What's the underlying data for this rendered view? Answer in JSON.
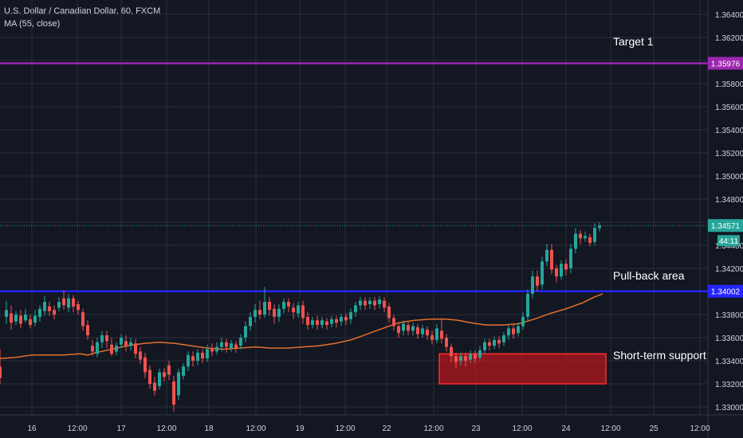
{
  "header": {
    "symbol_line": "U.S. Dollar / Canadian Dollar, 60, FXCM",
    "indicator_line": "MA (55, close)"
  },
  "chart_data": {
    "type": "candlestick",
    "y_ticks": [
      "1.33000",
      "1.33200",
      "1.33400",
      "1.33600",
      "1.33800",
      "1.34000",
      "1.34200",
      "1.34400",
      "1.34600",
      "1.34800",
      "1.35000",
      "1.35200",
      "1.35400",
      "1.35600",
      "1.35800",
      "1.36000",
      "1.36200",
      "1.36400"
    ],
    "ylim": [
      1.3295,
      1.3641
    ],
    "x_labels": [
      "16",
      "12:00",
      "17",
      "12:00",
      "18",
      "12:00",
      "19",
      "12:00",
      "22",
      "12:00",
      "23",
      "12:00",
      "24",
      "12:00",
      "25",
      "12:00"
    ],
    "last_price": "1.34571",
    "last_price_value": 1.34571,
    "countdown": "44:11",
    "levels": [
      {
        "name": "Target 1",
        "value": 1.35976,
        "label": "1.35976",
        "color": "#9c27b0",
        "annotation": "Target 1"
      },
      {
        "name": "Pull-back area",
        "value": 1.34002,
        "label": "1.34002",
        "color": "#2424ff",
        "annotation": "Pull-back area"
      }
    ],
    "zone": {
      "name": "Short-term support",
      "top": 1.3346,
      "bottom": 1.332,
      "annotation": "Short-term support"
    },
    "ma": {
      "name": "MA (55, close)",
      "color": "#e4702c",
      "points": [
        [
          0,
          1.3342
        ],
        [
          20,
          1.3343
        ],
        [
          40,
          1.3345
        ],
        [
          60,
          1.3345
        ],
        [
          80,
          1.3345
        ],
        [
          100,
          1.3346
        ],
        [
          110,
          1.3345
        ],
        [
          120,
          1.3347
        ],
        [
          140,
          1.335
        ],
        [
          160,
          1.3353
        ],
        [
          180,
          1.3355
        ],
        [
          200,
          1.3356
        ],
        [
          220,
          1.3355
        ],
        [
          240,
          1.3353
        ],
        [
          260,
          1.3351
        ],
        [
          280,
          1.335
        ],
        [
          300,
          1.3351
        ],
        [
          320,
          1.3352
        ],
        [
          340,
          1.3351
        ],
        [
          360,
          1.3351
        ],
        [
          380,
          1.3352
        ],
        [
          400,
          1.3353
        ],
        [
          420,
          1.3355
        ],
        [
          440,
          1.3358
        ],
        [
          460,
          1.3363
        ],
        [
          480,
          1.3368
        ],
        [
          500,
          1.3373
        ],
        [
          520,
          1.3375
        ],
        [
          540,
          1.3376
        ],
        [
          560,
          1.3376
        ],
        [
          575,
          1.3375
        ],
        [
          590,
          1.3373
        ],
        [
          610,
          1.3371
        ],
        [
          630,
          1.3371
        ],
        [
          650,
          1.3372
        ],
        [
          670,
          1.3376
        ],
        [
          690,
          1.3381
        ],
        [
          710,
          1.3385
        ],
        [
          730,
          1.339
        ],
        [
          745,
          1.3395
        ],
        [
          756,
          1.3398
        ]
      ]
    },
    "candles": [
      [
        0,
        1.3335,
        1.3325,
        1.335,
        1.332
      ],
      [
        8,
        1.3378,
        1.3384,
        1.3392,
        1.3372
      ],
      [
        14,
        1.3381,
        1.3373,
        1.3388,
        1.3367
      ],
      [
        20,
        1.3374,
        1.338,
        1.3383,
        1.3371
      ],
      [
        26,
        1.3379,
        1.3372,
        1.3384,
        1.3368
      ],
      [
        32,
        1.3375,
        1.338,
        1.3385,
        1.3373
      ],
      [
        38,
        1.3376,
        1.3371,
        1.338,
        1.3368
      ],
      [
        44,
        1.3373,
        1.3379,
        1.3384,
        1.337
      ],
      [
        50,
        1.3378,
        1.3385,
        1.3388,
        1.3374
      ],
      [
        56,
        1.3383,
        1.3391,
        1.3396,
        1.3379
      ],
      [
        62,
        1.3387,
        1.3383,
        1.3391,
        1.3379
      ],
      [
        68,
        1.3384,
        1.338,
        1.3388,
        1.3376
      ],
      [
        74,
        1.3386,
        1.3391,
        1.3395,
        1.3383
      ],
      [
        80,
        1.3394,
        1.3388,
        1.3401,
        1.3384
      ],
      [
        86,
        1.3386,
        1.3394,
        1.3398,
        1.3382
      ],
      [
        92,
        1.3394,
        1.3387,
        1.3397,
        1.3382
      ],
      [
        98,
        1.3389,
        1.3384,
        1.3392,
        1.338
      ],
      [
        104,
        1.3382,
        1.337,
        1.3385,
        1.3366
      ],
      [
        110,
        1.3371,
        1.3362,
        1.3375,
        1.3358
      ],
      [
        116,
        1.3353,
        1.3348,
        1.3358,
        1.3344
      ],
      [
        122,
        1.3346,
        1.3356,
        1.336,
        1.3343
      ],
      [
        128,
        1.3356,
        1.3362,
        1.3366,
        1.3351
      ],
      [
        134,
        1.3362,
        1.3357,
        1.3366,
        1.3351
      ],
      [
        140,
        1.3354,
        1.3346,
        1.336,
        1.3344
      ],
      [
        146,
        1.3348,
        1.3353,
        1.3356,
        1.3345
      ],
      [
        152,
        1.3354,
        1.336,
        1.3363,
        1.3351
      ],
      [
        158,
        1.3357,
        1.3353,
        1.3362,
        1.3348
      ],
      [
        164,
        1.3353,
        1.3356,
        1.336,
        1.3349
      ],
      [
        170,
        1.3355,
        1.3346,
        1.3359,
        1.3342
      ],
      [
        176,
        1.3348,
        1.3341,
        1.3352,
        1.3337
      ],
      [
        182,
        1.3343,
        1.333,
        1.3347,
        1.3325
      ],
      [
        188,
        1.3332,
        1.332,
        1.3336,
        1.3316
      ],
      [
        194,
        1.3321,
        1.3314,
        1.3326,
        1.331
      ],
      [
        200,
        1.3318,
        1.333,
        1.3333,
        1.3315
      ],
      [
        206,
        1.333,
        1.3326,
        1.3334,
        1.3322
      ],
      [
        212,
        1.3336,
        1.3328,
        1.334,
        1.3323
      ],
      [
        218,
        1.3322,
        1.3302,
        1.3327,
        1.3296
      ],
      [
        224,
        1.331,
        1.333,
        1.3333,
        1.3306
      ],
      [
        230,
        1.3327,
        1.3335,
        1.3338,
        1.3324
      ],
      [
        236,
        1.3335,
        1.3345,
        1.3348,
        1.3331
      ],
      [
        242,
        1.3344,
        1.334,
        1.3348,
        1.3335
      ],
      [
        248,
        1.334,
        1.3347,
        1.335,
        1.3336
      ],
      [
        254,
        1.3347,
        1.3342,
        1.335,
        1.3338
      ],
      [
        260,
        1.3342,
        1.335,
        1.3354,
        1.3339
      ],
      [
        266,
        1.335,
        1.3348,
        1.3355,
        1.3344
      ],
      [
        272,
        1.3348,
        1.3352,
        1.3356,
        1.3345
      ],
      [
        278,
        1.3352,
        1.3356,
        1.336,
        1.3348
      ],
      [
        284,
        1.3356,
        1.3352,
        1.3359,
        1.3347
      ],
      [
        290,
        1.3351,
        1.3355,
        1.3358,
        1.3348
      ],
      [
        296,
        1.3354,
        1.3351,
        1.3357,
        1.3347
      ],
      [
        302,
        1.3353,
        1.336,
        1.3363,
        1.335
      ],
      [
        308,
        1.336,
        1.337,
        1.3374,
        1.3356
      ],
      [
        314,
        1.337,
        1.3378,
        1.3382,
        1.3366
      ],
      [
        320,
        1.3378,
        1.3384,
        1.3389,
        1.3373
      ],
      [
        326,
        1.3384,
        1.338,
        1.3392,
        1.3376
      ],
      [
        332,
        1.338,
        1.3391,
        1.3404,
        1.3377
      ],
      [
        338,
        1.3391,
        1.3384,
        1.3395,
        1.3379
      ],
      [
        344,
        1.3385,
        1.3378,
        1.3389,
        1.3372
      ],
      [
        350,
        1.3378,
        1.3385,
        1.3389,
        1.3374
      ],
      [
        356,
        1.3385,
        1.3391,
        1.3394,
        1.3381
      ],
      [
        362,
        1.3391,
        1.3387,
        1.3394,
        1.3382
      ],
      [
        368,
        1.3386,
        1.3382,
        1.339,
        1.3376
      ],
      [
        374,
        1.3381,
        1.3388,
        1.3391,
        1.3377
      ],
      [
        380,
        1.3388,
        1.3377,
        1.3392,
        1.3372
      ],
      [
        386,
        1.3378,
        1.3371,
        1.3382,
        1.3367
      ],
      [
        392,
        1.3371,
        1.3375,
        1.3378,
        1.3368
      ],
      [
        398,
        1.3375,
        1.3371,
        1.3379,
        1.3367
      ],
      [
        404,
        1.3371,
        1.3375,
        1.3378,
        1.3368
      ],
      [
        410,
        1.3374,
        1.3371,
        1.3377,
        1.3367
      ],
      [
        416,
        1.3372,
        1.3376,
        1.3379,
        1.3369
      ],
      [
        422,
        1.3376,
        1.3373,
        1.3379,
        1.3369
      ],
      [
        428,
        1.3374,
        1.3378,
        1.3381,
        1.337
      ],
      [
        434,
        1.3378,
        1.3375,
        1.3381,
        1.3371
      ],
      [
        440,
        1.3376,
        1.3382,
        1.3385,
        1.3372
      ],
      [
        446,
        1.3382,
        1.3388,
        1.3391,
        1.3378
      ],
      [
        452,
        1.3388,
        1.3392,
        1.3395,
        1.3384
      ],
      [
        458,
        1.3392,
        1.3388,
        1.3395,
        1.3384
      ],
      [
        464,
        1.3389,
        1.3392,
        1.3395,
        1.3385
      ],
      [
        470,
        1.3392,
        1.3388,
        1.3395,
        1.3384
      ],
      [
        476,
        1.3389,
        1.3393,
        1.3396,
        1.3385
      ],
      [
        482,
        1.3392,
        1.3386,
        1.3395,
        1.3382
      ],
      [
        488,
        1.3387,
        1.3377,
        1.339,
        1.3373
      ],
      [
        494,
        1.3377,
        1.337,
        1.338,
        1.3366
      ],
      [
        500,
        1.337,
        1.3364,
        1.3373,
        1.336
      ],
      [
        506,
        1.3366,
        1.3372,
        1.3375,
        1.3362
      ],
      [
        512,
        1.3371,
        1.3366,
        1.3374,
        1.3362
      ],
      [
        518,
        1.3366,
        1.337,
        1.3373,
        1.3362
      ],
      [
        524,
        1.3369,
        1.3363,
        1.3372,
        1.3359
      ],
      [
        530,
        1.3363,
        1.3368,
        1.3371,
        1.336
      ],
      [
        536,
        1.3367,
        1.3362,
        1.337,
        1.3358
      ],
      [
        542,
        1.3362,
        1.3358,
        1.3366,
        1.3354
      ],
      [
        548,
        1.3358,
        1.3368,
        1.3372,
        1.3355
      ],
      [
        554,
        1.3366,
        1.3359,
        1.3377,
        1.3355
      ],
      [
        560,
        1.336,
        1.3352,
        1.3363,
        1.3348
      ],
      [
        566,
        1.3352,
        1.3344,
        1.3355,
        1.3339
      ],
      [
        572,
        1.3344,
        1.3339,
        1.3347,
        1.3333
      ],
      [
        578,
        1.334,
        1.3344,
        1.3347,
        1.3336
      ],
      [
        584,
        1.3344,
        1.334,
        1.3347,
        1.3335
      ],
      [
        590,
        1.3341,
        1.3346,
        1.3349,
        1.3338
      ],
      [
        596,
        1.3346,
        1.3342,
        1.3349,
        1.3338
      ],
      [
        602,
        1.3343,
        1.3349,
        1.3353,
        1.334
      ],
      [
        608,
        1.3349,
        1.3356,
        1.3359,
        1.3346
      ],
      [
        614,
        1.3356,
        1.3353,
        1.3359,
        1.3349
      ],
      [
        620,
        1.3353,
        1.3358,
        1.3361,
        1.335
      ],
      [
        626,
        1.3358,
        1.3355,
        1.3361,
        1.3351
      ],
      [
        632,
        1.3356,
        1.3362,
        1.3365,
        1.3353
      ],
      [
        638,
        1.3362,
        1.3368,
        1.3371,
        1.3358
      ],
      [
        644,
        1.3368,
        1.3363,
        1.3371,
        1.3359
      ],
      [
        650,
        1.3364,
        1.337,
        1.3373,
        1.3361
      ],
      [
        656,
        1.337,
        1.3378,
        1.3382,
        1.3367
      ],
      [
        662,
        1.3378,
        1.3398,
        1.3402,
        1.3375
      ],
      [
        668,
        1.3398,
        1.3413,
        1.3418,
        1.3394
      ],
      [
        674,
        1.3413,
        1.3405,
        1.3418,
        1.34
      ],
      [
        680,
        1.3406,
        1.3426,
        1.343,
        1.3402
      ],
      [
        686,
        1.3426,
        1.3436,
        1.3441,
        1.3422
      ],
      [
        692,
        1.3436,
        1.3419,
        1.3441,
        1.3415
      ],
      [
        698,
        1.342,
        1.3413,
        1.3423,
        1.3408
      ],
      [
        704,
        1.3413,
        1.3424,
        1.3427,
        1.341
      ],
      [
        710,
        1.3424,
        1.3419,
        1.3428,
        1.3414
      ],
      [
        716,
        1.342,
        1.3437,
        1.3441,
        1.3416
      ],
      [
        722,
        1.3437,
        1.345,
        1.3455,
        1.3433
      ],
      [
        728,
        1.345,
        1.3446,
        1.3453,
        1.3441
      ],
      [
        734,
        1.3446,
        1.3448,
        1.3452,
        1.3443
      ],
      [
        740,
        1.3447,
        1.3442,
        1.345,
        1.3439
      ],
      [
        746,
        1.3443,
        1.3455,
        1.3459,
        1.344
      ],
      [
        752,
        1.3455,
        1.3457,
        1.346,
        1.3452
      ]
    ]
  },
  "colors": {
    "background": "#131722",
    "grid": "#2a2e39",
    "text": "#d1d4dc",
    "up": "#26a69a",
    "down": "#ef5350",
    "zone_fill": "#b2171f",
    "zone_border": "#ff2a2a",
    "last_price": "#26a69a"
  }
}
